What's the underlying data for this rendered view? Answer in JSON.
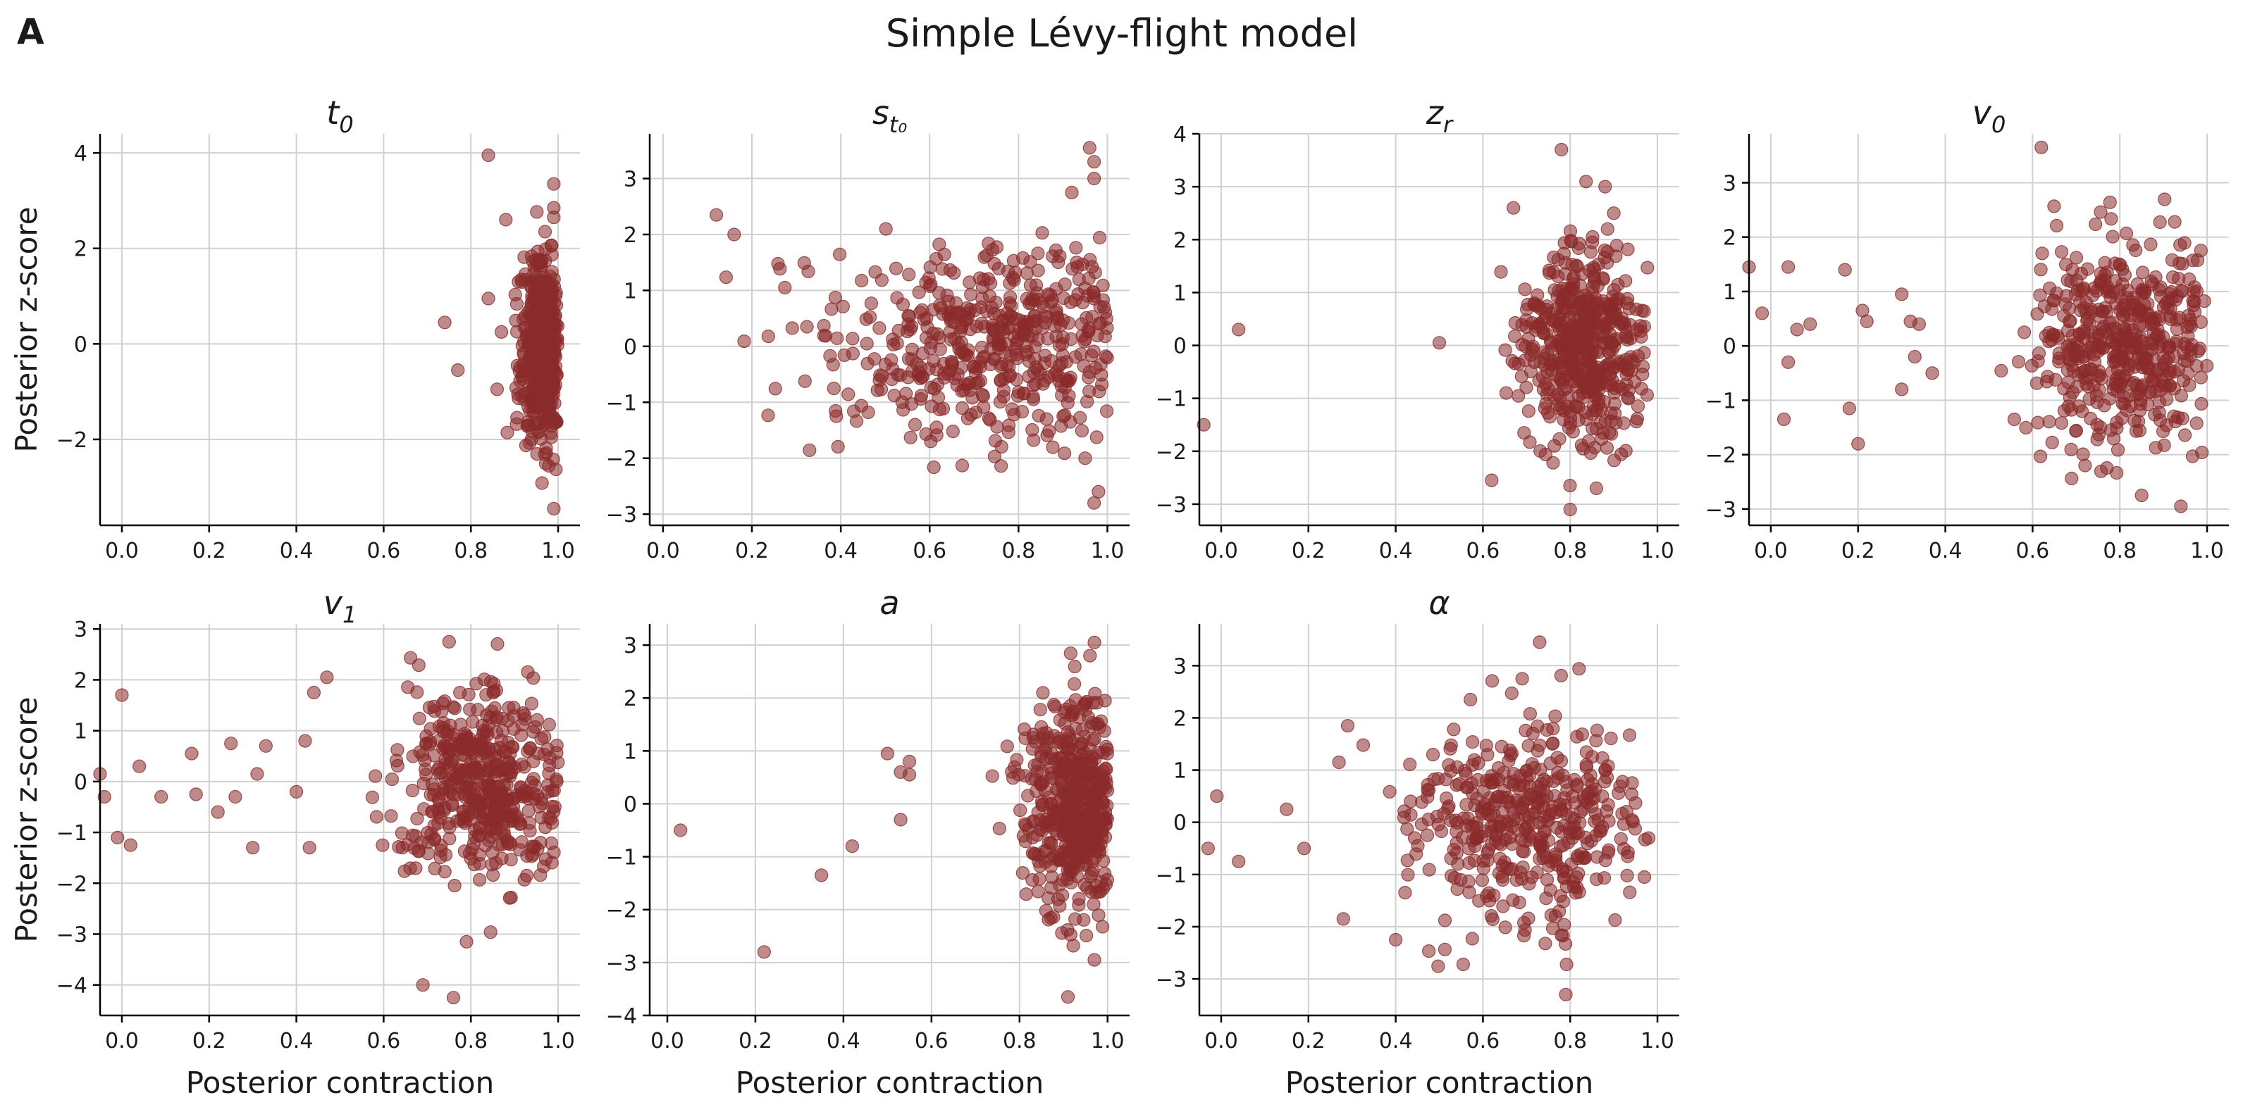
{
  "figure": {
    "panel_letter": "A",
    "title": "Simple Lévy-flight model"
  },
  "chart_data": [
    {
      "type": "scatter",
      "title_main": "t",
      "title_sub": "0",
      "xlabel": "",
      "ylabel": "Posterior z-score",
      "xlim": [
        -0.05,
        1.05
      ],
      "ylim": [
        -3.8,
        4.4
      ],
      "xticks": [
        0.0,
        0.2,
        0.4,
        0.6,
        0.8,
        1.0
      ],
      "yticks": [
        -2,
        0,
        2,
        4
      ],
      "xtick_labels": [
        "0.0",
        "0.2",
        "0.4",
        "0.6",
        "0.8",
        "1.0"
      ],
      "ytick_labels": [
        "−2",
        "0",
        "2",
        "4"
      ],
      "grid": true,
      "point_color": "#8b2a2a",
      "point_opacity": 0.55,
      "n_points": 500,
      "anchors": [
        [
          0.84,
          3.95
        ],
        [
          0.99,
          3.35
        ],
        [
          0.99,
          2.85
        ],
        [
          0.99,
          2.65
        ],
        [
          0.88,
          2.6
        ],
        [
          0.97,
          2.35
        ],
        [
          0.74,
          0.45
        ],
        [
          0.77,
          -0.55
        ],
        [
          0.99,
          -3.45
        ],
        [
          0.86,
          -0.95
        ],
        [
          0.84,
          0.95
        ],
        [
          0.87,
          0.25
        ]
      ],
      "cloud": {
        "x_mean": 0.965,
        "x_sd": 0.025,
        "x_min": 0.85,
        "x_max": 1.0,
        "y_mean": -0.1,
        "y_sd": 0.95
      }
    },
    {
      "type": "scatter",
      "title_main": "s",
      "title_sub": "t₀",
      "xlabel": "",
      "ylabel": "",
      "xlim": [
        -0.03,
        1.05
      ],
      "ylim": [
        -3.2,
        3.8
      ],
      "xticks": [
        0.0,
        0.2,
        0.4,
        0.6,
        0.8,
        1.0
      ],
      "yticks": [
        -3,
        -2,
        -1,
        0,
        1,
        2,
        3
      ],
      "xtick_labels": [
        "0.0",
        "0.2",
        "0.4",
        "0.6",
        "0.8",
        "1.0"
      ],
      "ytick_labels": [
        "−3",
        "−2",
        "−1",
        "0",
        "1",
        "2",
        "3"
      ],
      "grid": true,
      "point_color": "#8b2a2a",
      "point_opacity": 0.55,
      "n_points": 500,
      "anchors": [
        [
          0.96,
          3.55
        ],
        [
          0.97,
          3.3
        ],
        [
          0.97,
          3.0
        ],
        [
          0.92,
          2.75
        ],
        [
          0.98,
          -2.6
        ],
        [
          0.97,
          -2.8
        ],
        [
          0.95,
          -2.0
        ],
        [
          0.12,
          2.35
        ],
        [
          0.16,
          2.0
        ]
      ],
      "cloud": {
        "x_mean": 0.82,
        "x_sd": 0.24,
        "x_min": 0.0,
        "x_max": 1.0,
        "y_mean": 0.05,
        "y_sd": 0.85
      }
    },
    {
      "type": "scatter",
      "title_main": "z",
      "title_sub": "r",
      "xlabel": "",
      "ylabel": "",
      "xlim": [
        -0.05,
        1.05
      ],
      "ylim": [
        -3.4,
        4.0
      ],
      "xticks": [
        0.0,
        0.2,
        0.4,
        0.6,
        0.8,
        1.0
      ],
      "yticks": [
        -3,
        -2,
        -1,
        0,
        1,
        2,
        3,
        4
      ],
      "xtick_labels": [
        "0.0",
        "0.2",
        "0.4",
        "0.6",
        "0.8",
        "1.0"
      ],
      "ytick_labels": [
        "−3",
        "−2",
        "−1",
        "0",
        "1",
        "2",
        "3",
        "4"
      ],
      "grid": true,
      "point_color": "#8b2a2a",
      "point_opacity": 0.55,
      "n_points": 500,
      "anchors": [
        [
          -0.04,
          -1.5
        ],
        [
          0.04,
          0.3
        ],
        [
          0.5,
          0.05
        ],
        [
          0.78,
          3.7
        ],
        [
          0.88,
          3.0
        ],
        [
          0.67,
          2.6
        ],
        [
          0.62,
          -2.55
        ],
        [
          0.8,
          -3.1
        ],
        [
          0.86,
          -2.7
        ],
        [
          0.9,
          2.5
        ]
      ],
      "cloud": {
        "x_mean": 0.83,
        "x_sd": 0.07,
        "x_min": 0.6,
        "x_max": 0.98,
        "y_mean": 0.0,
        "y_sd": 0.95
      }
    },
    {
      "type": "scatter",
      "title_main": "v",
      "title_sub": "0",
      "xlabel": "",
      "ylabel": "",
      "xlim": [
        -0.05,
        1.05
      ],
      "ylim": [
        -3.3,
        3.9
      ],
      "xticks": [
        0.0,
        0.2,
        0.4,
        0.6,
        0.8,
        1.0
      ],
      "yticks": [
        -3,
        -2,
        -1,
        0,
        1,
        2,
        3
      ],
      "xtick_labels": [
        "0.0",
        "0.2",
        "0.4",
        "0.6",
        "0.8",
        "1.0"
      ],
      "ytick_labels": [
        "−3",
        "−2",
        "−1",
        "0",
        "1",
        "2",
        "3"
      ],
      "grid": true,
      "point_color": "#8b2a2a",
      "point_opacity": 0.55,
      "n_points": 500,
      "anchors": [
        [
          -0.05,
          1.45
        ],
        [
          -0.02,
          0.6
        ],
        [
          0.03,
          -1.35
        ],
        [
          0.04,
          1.45
        ],
        [
          0.04,
          -0.3
        ],
        [
          0.06,
          0.3
        ],
        [
          0.09,
          0.4
        ],
        [
          0.17,
          1.4
        ],
        [
          0.18,
          -1.15
        ],
        [
          0.2,
          -1.8
        ],
        [
          0.21,
          0.65
        ],
        [
          0.22,
          0.45
        ],
        [
          0.3,
          0.95
        ],
        [
          0.3,
          -0.8
        ],
        [
          0.32,
          0.45
        ],
        [
          0.33,
          -0.2
        ],
        [
          0.34,
          0.4
        ],
        [
          0.37,
          -0.5
        ],
        [
          0.62,
          3.65
        ],
        [
          0.94,
          -2.95
        ],
        [
          0.85,
          -2.75
        ]
      ],
      "cloud": {
        "x_mean": 0.82,
        "x_sd": 0.1,
        "x_min": 0.4,
        "x_max": 1.0,
        "y_mean": 0.1,
        "y_sd": 0.95
      }
    },
    {
      "type": "scatter",
      "title_main": "v",
      "title_sub": "1",
      "xlabel": "Posterior contraction",
      "ylabel": "Posterior z-score",
      "xlim": [
        -0.05,
        1.05
      ],
      "ylim": [
        -4.6,
        3.1
      ],
      "xticks": [
        0.0,
        0.2,
        0.4,
        0.6,
        0.8,
        1.0
      ],
      "yticks": [
        -4,
        -3,
        -2,
        -1,
        0,
        1,
        2,
        3
      ],
      "xtick_labels": [
        "0.0",
        "0.2",
        "0.4",
        "0.6",
        "0.8",
        "1.0"
      ],
      "ytick_labels": [
        "−4",
        "−3",
        "−2",
        "−1",
        "0",
        "1",
        "2",
        "3"
      ],
      "grid": true,
      "point_color": "#8b2a2a",
      "point_opacity": 0.55,
      "n_points": 500,
      "anchors": [
        [
          -0.05,
          0.15
        ],
        [
          -0.04,
          -0.3
        ],
        [
          -0.01,
          -1.1
        ],
        [
          0.0,
          1.7
        ],
        [
          0.02,
          -1.25
        ],
        [
          0.04,
          0.3
        ],
        [
          0.09,
          -0.3
        ],
        [
          0.16,
          0.55
        ],
        [
          0.17,
          -0.25
        ],
        [
          0.22,
          -0.6
        ],
        [
          0.25,
          0.75
        ],
        [
          0.26,
          -0.3
        ],
        [
          0.3,
          -1.3
        ],
        [
          0.31,
          0.15
        ],
        [
          0.33,
          0.7
        ],
        [
          0.4,
          -0.2
        ],
        [
          0.42,
          0.8
        ],
        [
          0.43,
          -1.3
        ],
        [
          0.47,
          2.05
        ],
        [
          0.44,
          1.75
        ],
        [
          0.69,
          -4.0
        ],
        [
          0.76,
          -4.25
        ],
        [
          0.75,
          2.75
        ],
        [
          0.79,
          -3.15
        ]
      ],
      "cloud": {
        "x_mean": 0.84,
        "x_sd": 0.1,
        "x_min": 0.4,
        "x_max": 1.0,
        "y_mean": 0.0,
        "y_sd": 0.95
      }
    },
    {
      "type": "scatter",
      "title_main": "a",
      "title_sub": "",
      "xlabel": "Posterior contraction",
      "ylabel": "",
      "xlim": [
        -0.04,
        1.05
      ],
      "ylim": [
        -4.0,
        3.4
      ],
      "xticks": [
        0.0,
        0.2,
        0.4,
        0.6,
        0.8,
        1.0
      ],
      "yticks": [
        -4,
        -3,
        -2,
        -1,
        0,
        1,
        2,
        3
      ],
      "xtick_labels": [
        "0.0",
        "0.2",
        "0.4",
        "0.6",
        "0.8",
        "1.0"
      ],
      "ytick_labels": [
        "−4",
        "−3",
        "−2",
        "−1",
        "0",
        "1",
        "2",
        "3"
      ],
      "grid": true,
      "point_color": "#8b2a2a",
      "point_opacity": 0.55,
      "n_points": 500,
      "anchors": [
        [
          0.03,
          -0.5
        ],
        [
          0.22,
          -2.8
        ],
        [
          0.35,
          -1.35
        ],
        [
          0.42,
          -0.8
        ],
        [
          0.5,
          0.95
        ],
        [
          0.53,
          0.6
        ],
        [
          0.55,
          0.55
        ],
        [
          0.55,
          0.8
        ],
        [
          0.53,
          -0.3
        ],
        [
          0.91,
          -3.65
        ],
        [
          0.97,
          3.05
        ],
        [
          0.96,
          2.8
        ],
        [
          0.97,
          -2.95
        ]
      ],
      "cloud": {
        "x_mean": 0.93,
        "x_sd": 0.06,
        "x_min": 0.6,
        "x_max": 1.0,
        "y_mean": 0.0,
        "y_sd": 1.0
      }
    },
    {
      "type": "scatter",
      "title_main": "α",
      "title_sub": "",
      "xlabel": "Posterior contraction",
      "ylabel": "",
      "xlim": [
        -0.05,
        1.05
      ],
      "ylim": [
        -3.7,
        3.8
      ],
      "xticks": [
        0.0,
        0.2,
        0.4,
        0.6,
        0.8,
        1.0
      ],
      "yticks": [
        -3,
        -2,
        -1,
        0,
        1,
        2,
        3
      ],
      "xtick_labels": [
        "0.0",
        "0.2",
        "0.4",
        "0.6",
        "0.8",
        "1.0"
      ],
      "ytick_labels": [
        "−3",
        "−2",
        "−1",
        "0",
        "1",
        "2",
        "3"
      ],
      "grid": true,
      "point_color": "#8b2a2a",
      "point_opacity": 0.55,
      "n_points": 450,
      "anchors": [
        [
          -0.03,
          -0.5
        ],
        [
          -0.01,
          0.5
        ],
        [
          0.04,
          -0.75
        ],
        [
          0.15,
          0.25
        ],
        [
          0.19,
          -0.5
        ],
        [
          0.27,
          1.15
        ],
        [
          0.28,
          -1.85
        ],
        [
          0.29,
          1.85
        ],
        [
          0.4,
          -2.25
        ],
        [
          0.73,
          3.45
        ],
        [
          0.69,
          2.75
        ],
        [
          0.79,
          -3.3
        ],
        [
          0.97,
          -1.05
        ]
      ],
      "cloud": {
        "x_mean": 0.7,
        "x_sd": 0.13,
        "x_min": 0.3,
        "x_max": 0.98,
        "y_mean": 0.0,
        "y_sd": 0.95
      }
    }
  ]
}
